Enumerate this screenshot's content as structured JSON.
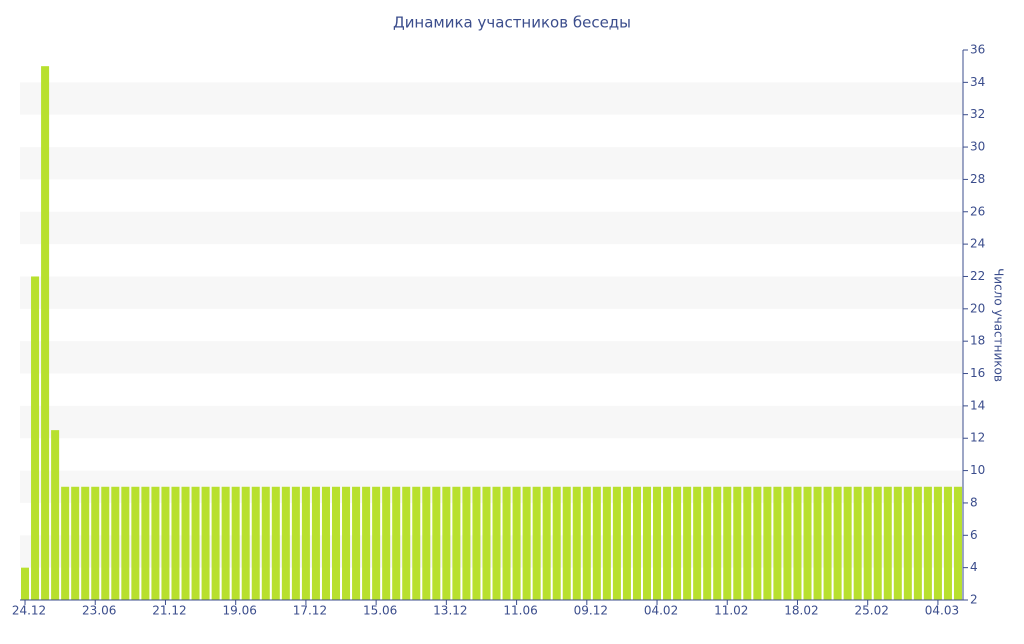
{
  "chart_data": {
    "type": "bar",
    "title": "Динамика участников беседы",
    "y_axis_label": "Число участников",
    "color": "#b8e02e",
    "axis_side": "right",
    "grid": "bands",
    "categories": [
      "24.12",
      null,
      null,
      null,
      null,
      null,
      null,
      "23.06",
      null,
      null,
      null,
      null,
      null,
      null,
      "21.12",
      null,
      null,
      null,
      null,
      null,
      null,
      "19.06",
      null,
      null,
      null,
      null,
      null,
      null,
      "17.12",
      null,
      null,
      null,
      null,
      null,
      null,
      "15.06",
      null,
      null,
      null,
      null,
      null,
      null,
      "13.12",
      null,
      null,
      null,
      null,
      null,
      null,
      "11.06",
      null,
      null,
      null,
      null,
      null,
      null,
      "09.12",
      null,
      null,
      null,
      null,
      null,
      null,
      "04.02",
      null,
      null,
      null,
      null,
      null,
      null,
      "11.02",
      null,
      null,
      null,
      null,
      null,
      null,
      "18.02",
      null,
      null,
      null,
      null,
      null,
      null,
      "25.02",
      null,
      null,
      null,
      null,
      null,
      null,
      "04.03",
      null,
      null
    ],
    "values": [
      4,
      22,
      35,
      12.5,
      9,
      9,
      9,
      9,
      9,
      9,
      9,
      9,
      9,
      9,
      9,
      9,
      9,
      9,
      9,
      9,
      9,
      9,
      9,
      9,
      9,
      9,
      9,
      9,
      9,
      9,
      9,
      9,
      9,
      9,
      9,
      9,
      9,
      9,
      9,
      9,
      9,
      9,
      9,
      9,
      9,
      9,
      9,
      9,
      9,
      9,
      9,
      9,
      9,
      9,
      9,
      9,
      9,
      9,
      9,
      9,
      9,
      9,
      9,
      9,
      9,
      9,
      9,
      9,
      9,
      9,
      9,
      9,
      9,
      9,
      9,
      9,
      9,
      9,
      9,
      9,
      9,
      9,
      9,
      9,
      9,
      9,
      9,
      9,
      9,
      9,
      9,
      9,
      9,
      9
    ],
    "ylim": [
      2,
      36
    ],
    "yticks": [
      2,
      4,
      6,
      8,
      10,
      12,
      14,
      16,
      18,
      20,
      22,
      24,
      26,
      28,
      30,
      32,
      34,
      36
    ]
  }
}
